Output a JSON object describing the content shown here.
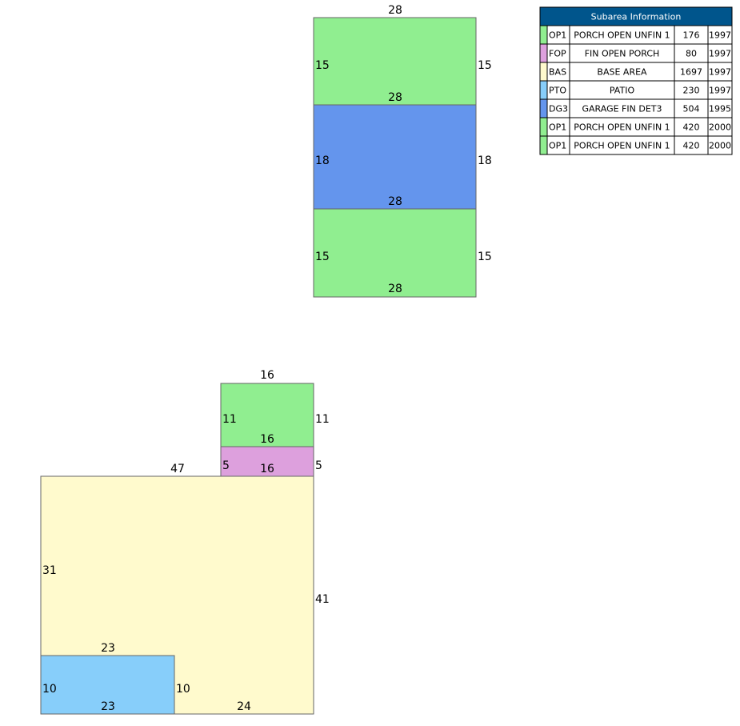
{
  "table": {
    "title": "Subarea Information",
    "rows": [
      {
        "color": "#90ee90",
        "cells": [
          "OP1",
          "PORCH OPEN UNFIN 1",
          "176",
          "1997"
        ]
      },
      {
        "color": "#dda0dd",
        "cells": [
          "FOP",
          "FIN OPEN PORCH",
          "80",
          "1997"
        ]
      },
      {
        "color": "#fffacd",
        "cells": [
          "BAS",
          "BASE AREA",
          "1697",
          "1997"
        ]
      },
      {
        "color": "#87cefa",
        "cells": [
          "PTO",
          "PATIO",
          "230",
          "1997"
        ]
      },
      {
        "color": "#6495ed",
        "cells": [
          "DG3",
          "GARAGE FIN DET3",
          "504",
          "1995"
        ]
      },
      {
        "color": "#90ee90",
        "cells": [
          "OP1",
          "PORCH OPEN UNFIN 1",
          "420",
          "2000"
        ]
      },
      {
        "color": "#90ee90",
        "cells": [
          "OP1",
          "PORCH OPEN UNFIN 1",
          "420",
          "2000"
        ]
      }
    ]
  },
  "sketch": {
    "shapes": [
      {
        "color": "#90ee90",
        "labels": [
          28,
          15,
          15,
          28
        ]
      },
      {
        "color": "#6495ed",
        "labels": [
          18,
          18,
          28
        ]
      },
      {
        "color": "#90ee90",
        "labels": [
          15,
          15,
          28
        ]
      },
      {
        "color": "#fffacd",
        "labels": [
          47,
          31,
          41,
          24
        ]
      },
      {
        "color": "#87cefa",
        "labels": [
          23,
          10,
          10,
          23
        ]
      },
      {
        "color": "#90ee90",
        "labels": [
          16,
          11,
          11,
          16
        ]
      },
      {
        "color": "#dda0dd",
        "labels": [
          5,
          5,
          16
        ]
      }
    ]
  }
}
